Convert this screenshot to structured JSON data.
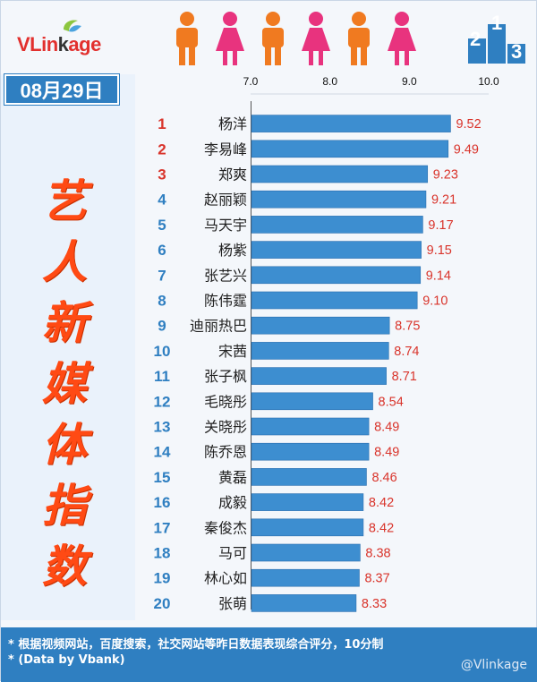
{
  "brand": {
    "logo_text_red": "VLin",
    "logo_text_dark": "k",
    "logo_text_red2": "age"
  },
  "header": {
    "figures": [
      "male",
      "female",
      "male",
      "female",
      "male",
      "female"
    ],
    "colors": {
      "male": "#f07a20",
      "female": "#e8337e",
      "accent": "#2f7fc1",
      "title": "#ff4a14"
    },
    "year_icon_digits": [
      "2",
      "1",
      "3"
    ]
  },
  "date": "08月29日",
  "title_chars": [
    "艺",
    "人",
    "新",
    "媒",
    "体",
    "指",
    "数"
  ],
  "chart_data": {
    "type": "bar",
    "orientation": "horizontal",
    "title": "艺人新媒体指数",
    "xlim": [
      7.0,
      10.0
    ],
    "xticks": [
      "7.0",
      "8.0",
      "9.0",
      "10.0"
    ],
    "ranks": [
      "1",
      "2",
      "3",
      "4",
      "5",
      "6",
      "7",
      "8",
      "9",
      "10",
      "11",
      "12",
      "13",
      "14",
      "15",
      "16",
      "17",
      "18",
      "19",
      "20"
    ],
    "categories": [
      "杨洋",
      "李易峰",
      "郑爽",
      "赵丽颖",
      "马天宇",
      "杨紫",
      "张艺兴",
      "陈伟霆",
      "迪丽热巴",
      "宋茜",
      "张子枫",
      "毛晓彤",
      "关晓彤",
      "陈乔恩",
      "黄磊",
      "成毅",
      "秦俊杰",
      "马可",
      "林心如",
      "张萌"
    ],
    "values": [
      9.52,
      9.49,
      9.23,
      9.21,
      9.17,
      9.15,
      9.14,
      9.1,
      8.75,
      8.74,
      8.71,
      8.54,
      8.49,
      8.49,
      8.46,
      8.42,
      8.42,
      8.38,
      8.37,
      8.33
    ],
    "value_labels": [
      "9.52",
      "9.49",
      "9.23",
      "9.21",
      "9.17",
      "9.15",
      "9.14",
      "9.10",
      "8.75",
      "8.74",
      "8.71",
      "8.54",
      "8.49",
      "8.49",
      "8.46",
      "8.42",
      "8.42",
      "8.38",
      "8.37",
      "8.33"
    ],
    "bar_color": "#3d8ed0",
    "rank_color_top": "#d9342b",
    "rank_color_rest": "#2f7fc1",
    "value_color": "#d9342b"
  },
  "footer": {
    "note1": "* 根据视频网站，百度搜索，社交网站等昨日数据表现综合评分，10分制",
    "note2": "* (Data by Vbank)",
    "watermark": "@Vlinkage"
  }
}
